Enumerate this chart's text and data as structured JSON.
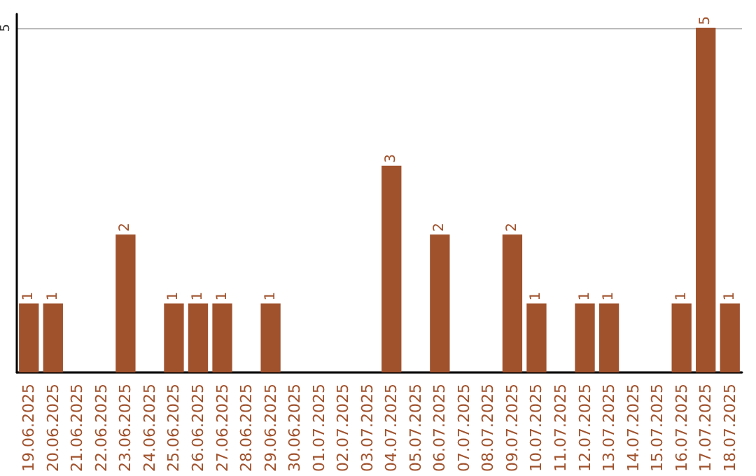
{
  "chart_data": {
    "type": "bar",
    "categories": [
      "19.06.2025",
      "20.06.2025",
      "21.06.2025",
      "22.06.2025",
      "23.06.2025",
      "24.06.2025",
      "25.06.2025",
      "26.06.2025",
      "27.06.2025",
      "28.06.2025",
      "29.06.2025",
      "30.06.2025",
      "01.07.2025",
      "02.07.2025",
      "03.07.2025",
      "04.07.2025",
      "05.07.2025",
      "06.07.2025",
      "07.07.2025",
      "08.07.2025",
      "09.07.2025",
      "10.07.2025",
      "11.07.2025",
      "12.07.2025",
      "13.07.2025",
      "14.07.2025",
      "15.07.2025",
      "16.07.2025",
      "17.07.2025",
      "18.07.2025"
    ],
    "values": [
      1,
      1,
      0,
      0,
      2,
      0,
      1,
      1,
      1,
      0,
      1,
      0,
      0,
      0,
      0,
      3,
      0,
      2,
      0,
      0,
      2,
      1,
      0,
      1,
      1,
      0,
      0,
      1,
      5,
      1
    ],
    "value_labels": [
      "1",
      "1",
      null,
      null,
      "2",
      null,
      "1",
      "1",
      "1",
      null,
      "1",
      null,
      null,
      null,
      null,
      "3",
      null,
      "2",
      null,
      null,
      "2",
      "1",
      null,
      "1",
      "1",
      null,
      null,
      "1",
      "5",
      "1"
    ],
    "color": "#a0522d",
    "ylim": [
      0,
      5.2
    ],
    "yticks": [
      {
        "value": 0,
        "label": null
      },
      5
    ],
    "grid": "y"
  }
}
